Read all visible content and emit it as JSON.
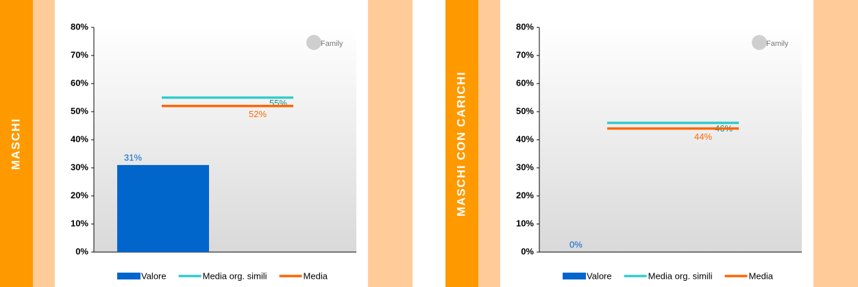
{
  "chart_data": [
    {
      "type": "bar",
      "title": "MASCHI",
      "logo": "Family",
      "series": [
        {
          "name": "Valore",
          "type": "bar",
          "color": "#0066cc",
          "values": [
            31
          ],
          "value_labels": [
            "31%"
          ]
        },
        {
          "name": "Media org. simili",
          "type": "line",
          "color": "#33cccc",
          "values": [
            55
          ],
          "value_labels": [
            "55%"
          ]
        },
        {
          "name": "Media",
          "type": "line",
          "color": "#ff6600",
          "values": [
            52
          ],
          "value_labels": [
            "52%"
          ]
        }
      ],
      "ylim": [
        0,
        80
      ],
      "yticks": [
        {
          "value": 0,
          "label": "0%"
        },
        {
          "value": 10,
          "label": "10%"
        },
        {
          "value": 20,
          "label": "20%"
        },
        {
          "value": 30,
          "label": "30%"
        },
        {
          "value": 40,
          "label": "40%"
        },
        {
          "value": 50,
          "label": "50%"
        },
        {
          "value": 60,
          "label": "60%"
        },
        {
          "value": 70,
          "label": "70%"
        },
        {
          "value": 80,
          "label": "80%"
        }
      ]
    },
    {
      "type": "bar",
      "title": "MASCHI CON CARICHI",
      "logo": "Family",
      "series": [
        {
          "name": "Valore",
          "type": "bar",
          "color": "#0066cc",
          "values": [
            0
          ],
          "value_labels": [
            "0%"
          ]
        },
        {
          "name": "Media org. simili",
          "type": "line",
          "color": "#33cccc",
          "values": [
            46
          ],
          "value_labels": [
            "46%"
          ]
        },
        {
          "name": "Media",
          "type": "line",
          "color": "#ff6600",
          "values": [
            44
          ],
          "value_labels": [
            "44%"
          ]
        }
      ],
      "ylim": [
        0,
        80
      ],
      "yticks": [
        {
          "value": 0,
          "label": "0%"
        },
        {
          "value": 10,
          "label": "10%"
        },
        {
          "value": 20,
          "label": "20%"
        },
        {
          "value": 30,
          "label": "30%"
        },
        {
          "value": 40,
          "label": "40%"
        },
        {
          "value": 50,
          "label": "50%"
        },
        {
          "value": 60,
          "label": "60%"
        },
        {
          "value": 70,
          "label": "70%"
        },
        {
          "value": 80,
          "label": "80%"
        }
      ]
    }
  ]
}
